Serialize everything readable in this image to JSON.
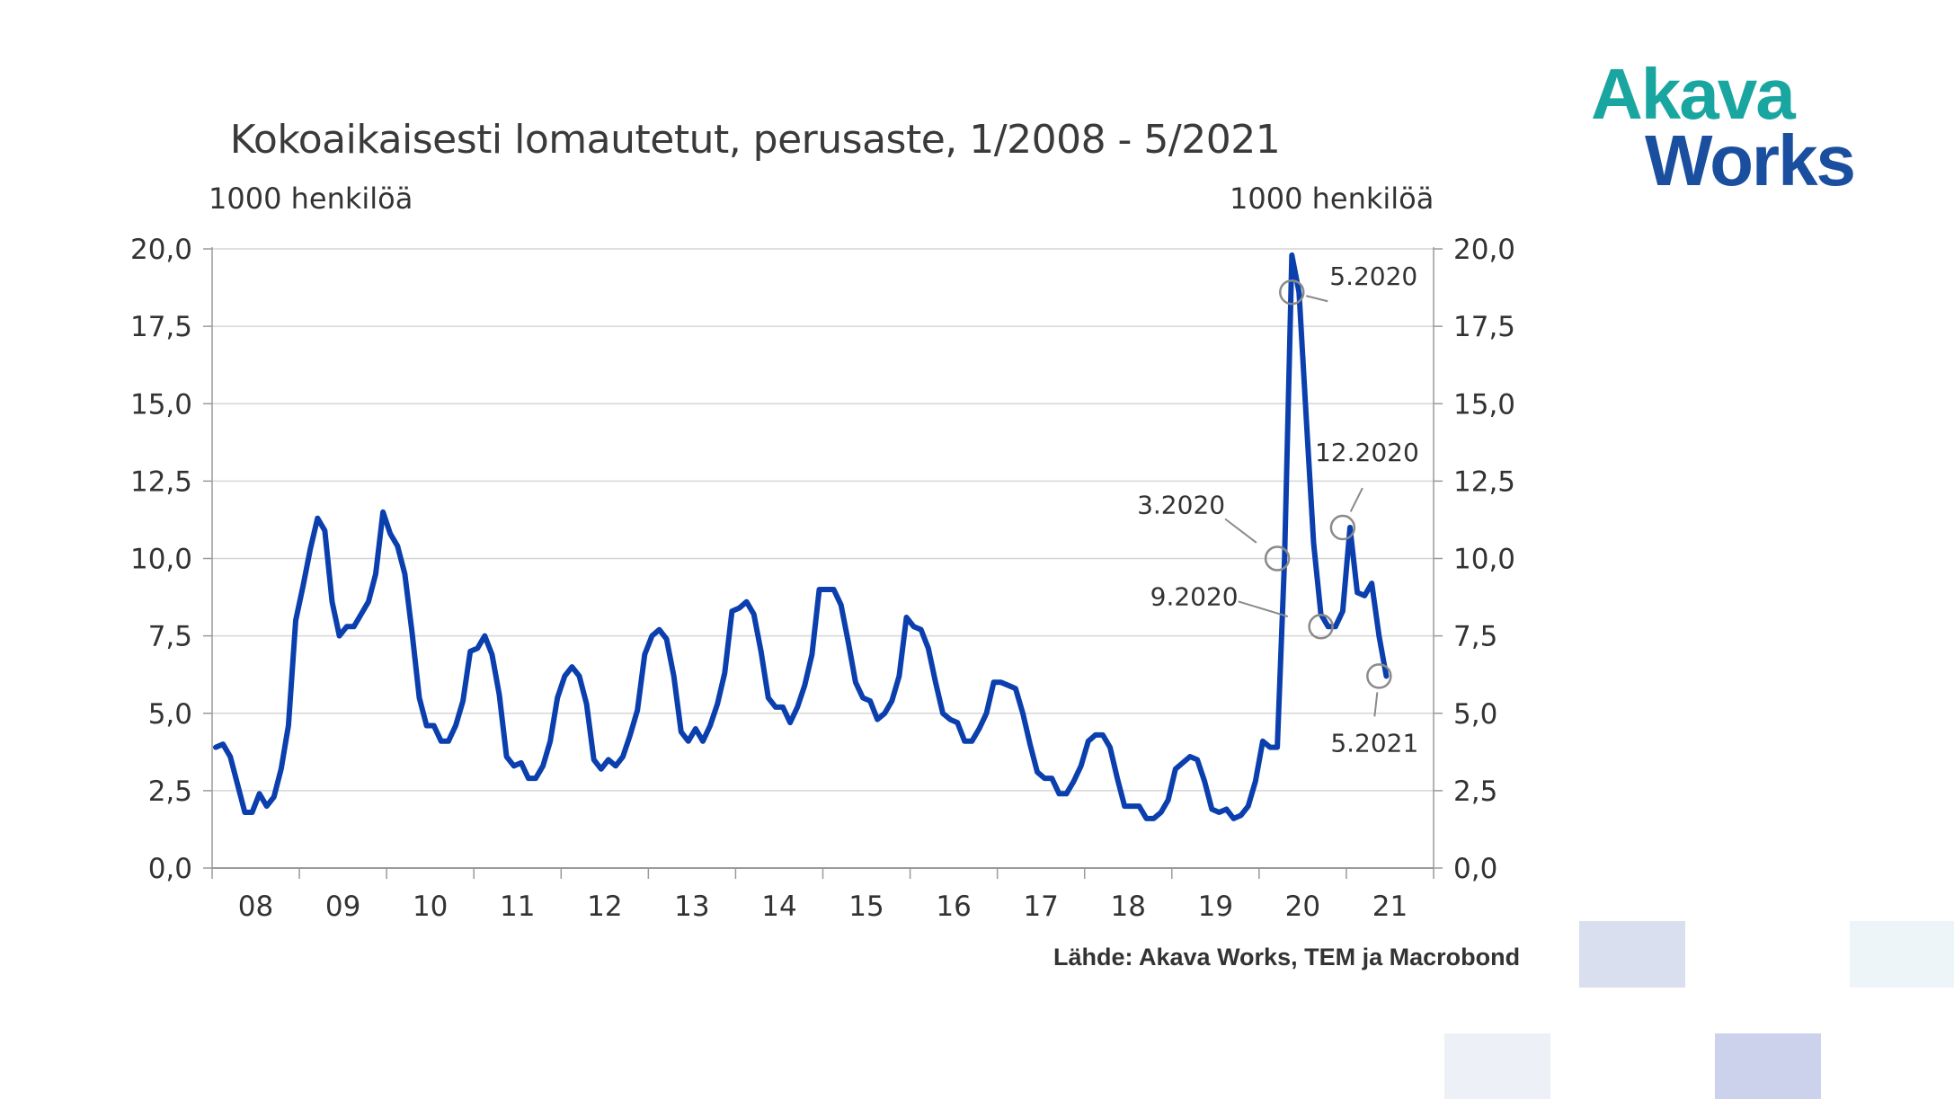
{
  "logo": {
    "line1": "Akava",
    "line2": "Works"
  },
  "colors": {
    "series": "#0b3fae",
    "grid": "#d6d6d6",
    "axis": "#9a9a9a",
    "marker": "#8a8a8a",
    "logo_teal": "#1aa6a0",
    "logo_blue": "#1a4fa0"
  },
  "chart_data": {
    "type": "line",
    "title": "Kokoaikaisesti lomautetut, perusaste, 1/2008 - 5/2021",
    "ylabel_left": "1000 henkilöä",
    "ylabel_right": "1000 henkilöä",
    "ylim": [
      0,
      20
    ],
    "y_ticks": [
      "0,0",
      "2,5",
      "5,0",
      "7,5",
      "10,0",
      "12,5",
      "15,0",
      "17,5",
      "20,0"
    ],
    "x_ticks": [
      "08",
      "09",
      "10",
      "11",
      "12",
      "13",
      "14",
      "15",
      "16",
      "17",
      "18",
      "19",
      "20",
      "21"
    ],
    "grid": true,
    "source": "Lähde: Akava Works, TEM ja Macrobond",
    "series": [
      {
        "x_start": "1/2008",
        "frequency": "monthly",
        "values": [
          3.9,
          4.0,
          3.6,
          2.7,
          1.8,
          1.8,
          2.4,
          2.0,
          2.3,
          3.2,
          4.6,
          8.0,
          9.1,
          10.3,
          11.3,
          10.9,
          8.6,
          7.5,
          7.8,
          7.8,
          8.2,
          8.6,
          9.5,
          11.5,
          10.8,
          10.4,
          9.5,
          7.6,
          5.5,
          4.6,
          4.6,
          4.1,
          4.1,
          4.6,
          5.4,
          7.0,
          7.1,
          7.5,
          6.9,
          5.6,
          3.6,
          3.3,
          3.4,
          2.9,
          2.9,
          3.3,
          4.1,
          5.5,
          6.2,
          6.5,
          6.2,
          5.3,
          3.5,
          3.2,
          3.5,
          3.3,
          3.6,
          4.3,
          5.1,
          6.9,
          7.5,
          7.7,
          7.4,
          6.2,
          4.4,
          4.1,
          4.5,
          4.1,
          4.6,
          5.3,
          6.3,
          8.3,
          8.4,
          8.6,
          8.2,
          7.0,
          5.5,
          5.2,
          5.2,
          4.7,
          5.2,
          5.9,
          6.9,
          9.0,
          9.0,
          9.0,
          8.5,
          7.3,
          6.0,
          5.5,
          5.4,
          4.8,
          5.0,
          5.4,
          6.2,
          8.1,
          7.8,
          7.7,
          7.1,
          6.0,
          5.0,
          4.8,
          4.7,
          4.1,
          4.1,
          4.5,
          5.0,
          6.0,
          6.0,
          5.9,
          5.8,
          5.0,
          4.0,
          3.1,
          2.9,
          2.9,
          2.4,
          2.4,
          2.8,
          3.3,
          4.1,
          4.3,
          4.3,
          3.9,
          2.9,
          2.0,
          2.0,
          2.0,
          1.6,
          1.6,
          1.8,
          2.2,
          3.2,
          3.4,
          3.6,
          3.5,
          2.8,
          1.9,
          1.8,
          1.9,
          1.6,
          1.7,
          2.0,
          2.8,
          4.1,
          3.9,
          3.9,
          10.0,
          19.8,
          18.6,
          14.5,
          10.5,
          8.2,
          7.8,
          7.8,
          8.3,
          11.0,
          8.9,
          8.8,
          9.2,
          7.5,
          6.2
        ]
      }
    ],
    "annotations": [
      {
        "label": "5.2020",
        "x": "5/2020",
        "y": 18.6
      },
      {
        "label": "3.2020",
        "x": "3/2020",
        "y": 10.0
      },
      {
        "label": "12.2020",
        "x": "12/2020",
        "y": 11.0
      },
      {
        "label": "9.2020",
        "x": "9/2020",
        "y": 7.8
      },
      {
        "label": "5.2021",
        "x": "5/2021",
        "y": 6.2
      }
    ]
  }
}
